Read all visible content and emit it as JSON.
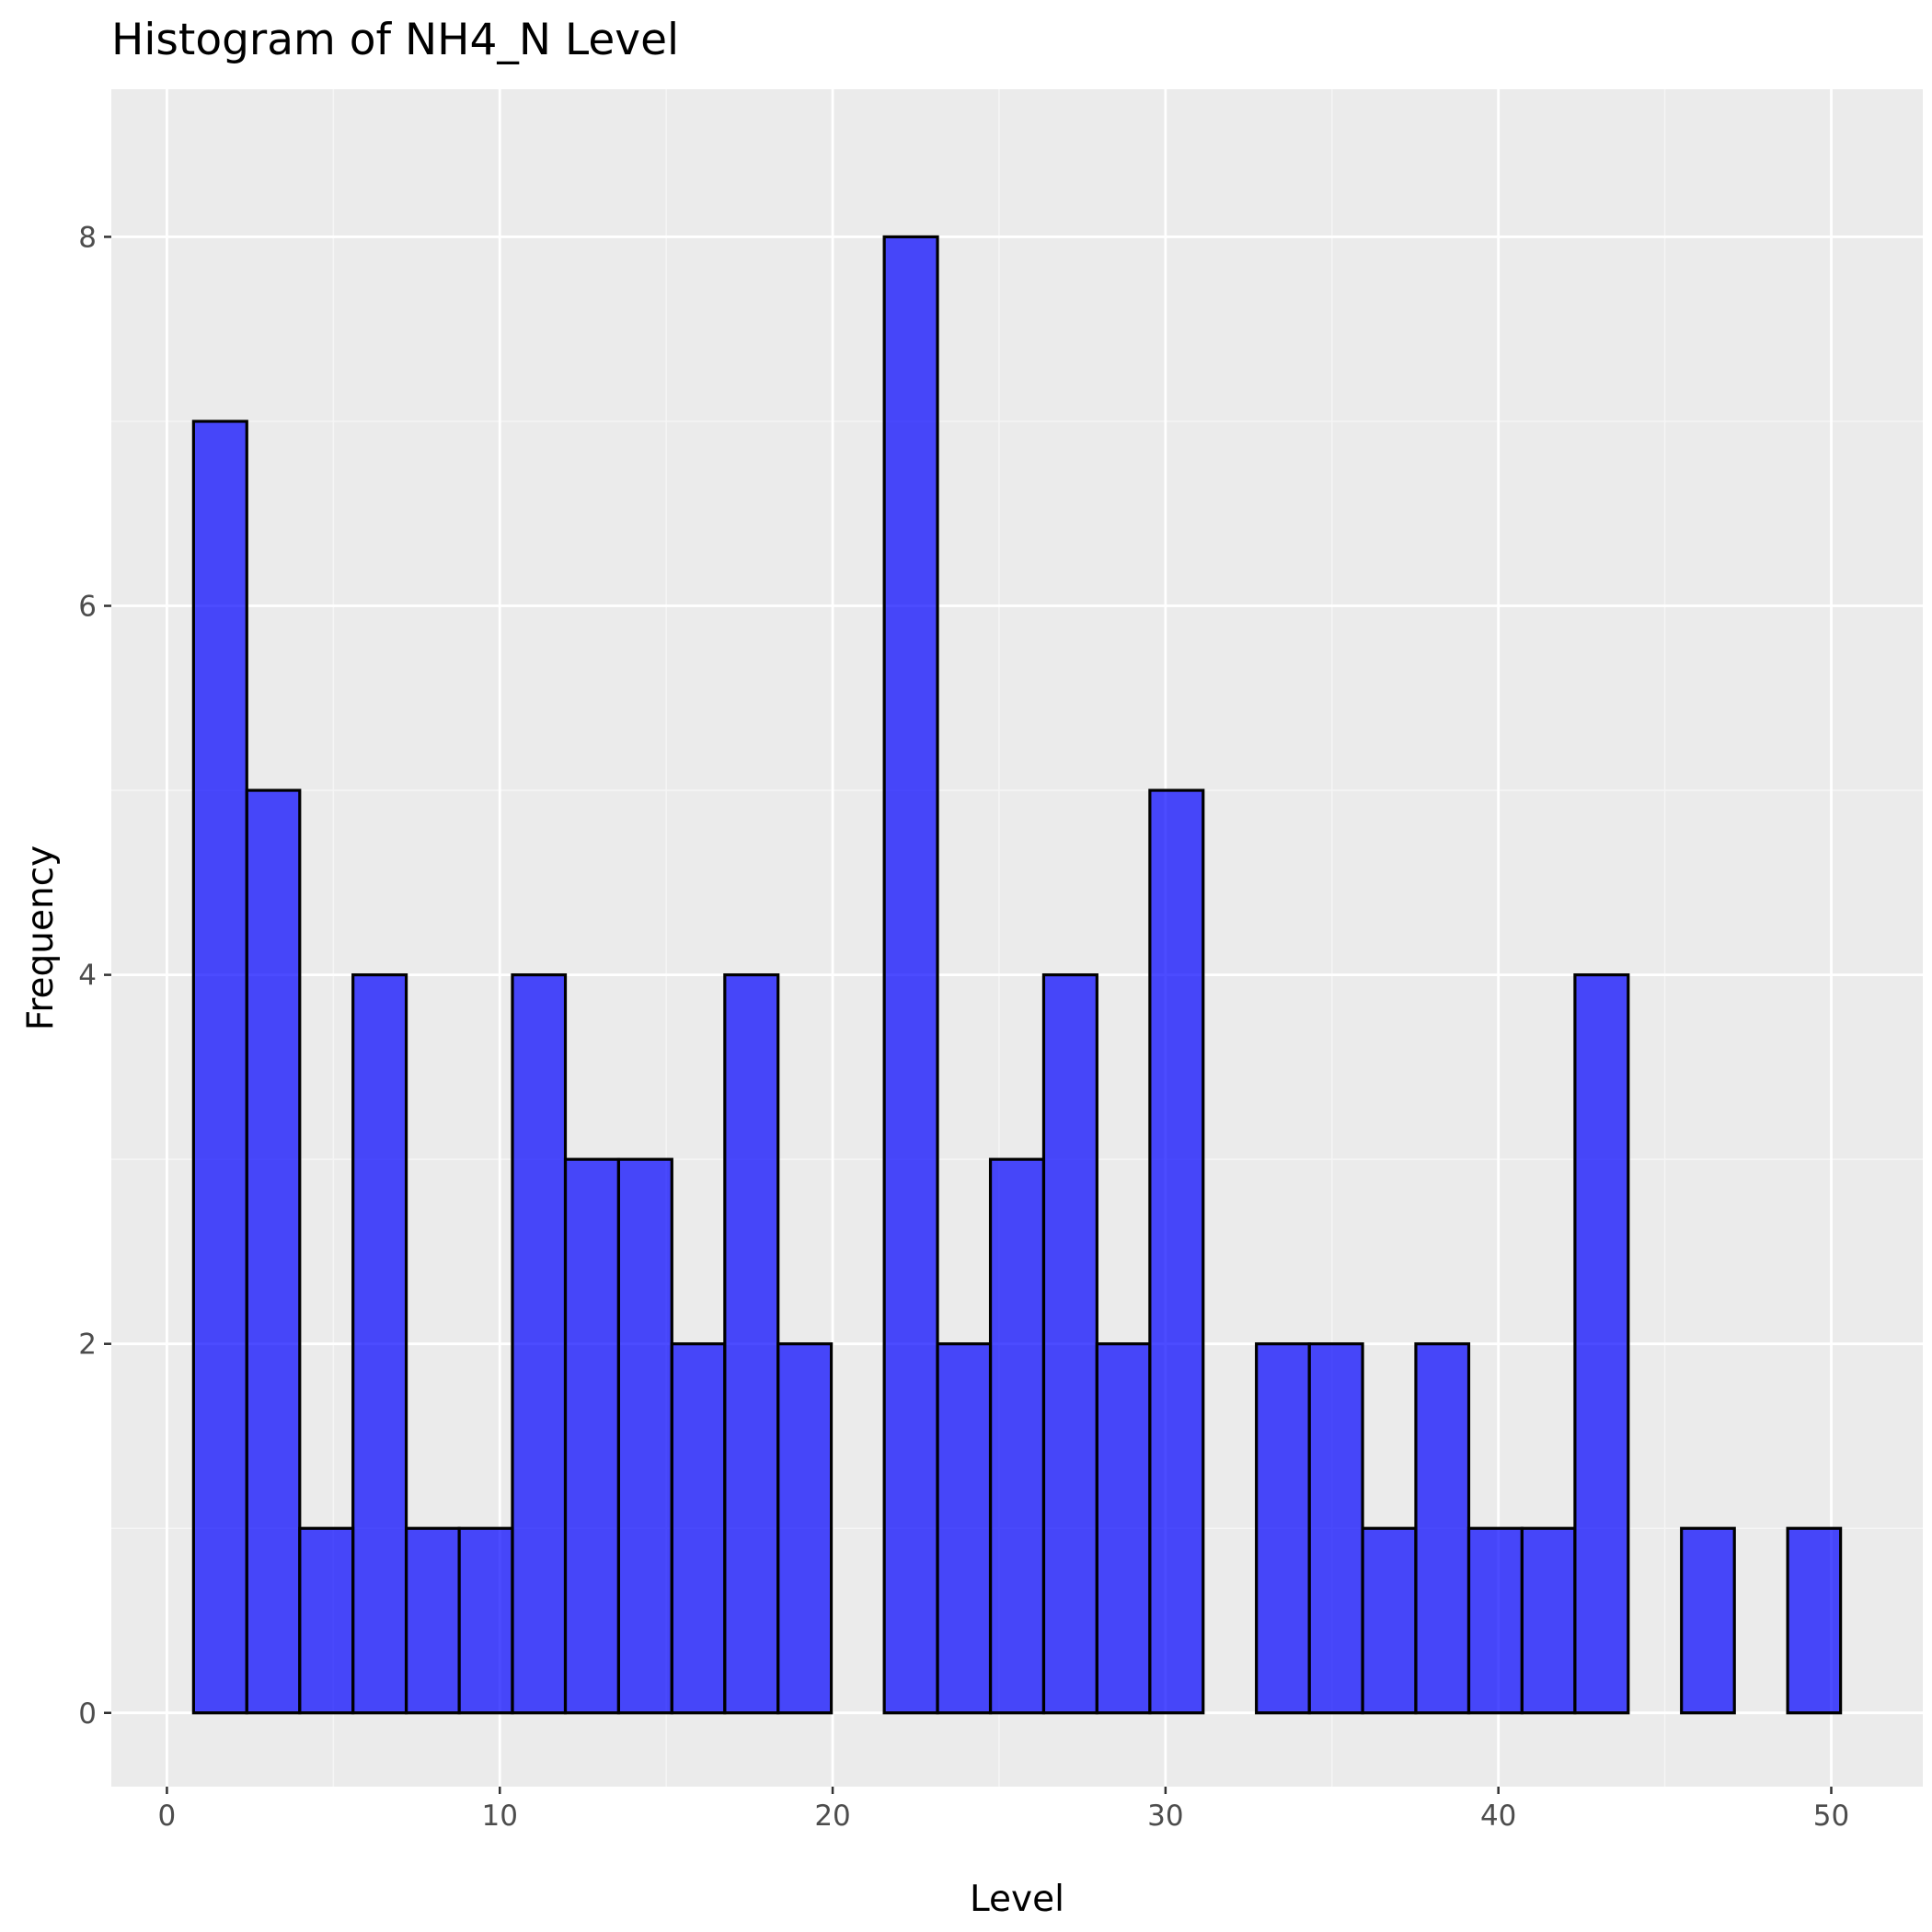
{
  "chart_data": {
    "type": "bar",
    "title": "Histogram of NH4_N Level",
    "xlabel": "Level",
    "ylabel": "Frequency",
    "bin_width": 1.596,
    "bins": [
      {
        "start": 0.8,
        "end": 2.4,
        "count": 7
      },
      {
        "start": 2.4,
        "end": 3.99,
        "count": 5
      },
      {
        "start": 3.99,
        "end": 5.59,
        "count": 1
      },
      {
        "start": 5.59,
        "end": 7.19,
        "count": 4
      },
      {
        "start": 7.19,
        "end": 8.78,
        "count": 1
      },
      {
        "start": 8.78,
        "end": 10.38,
        "count": 1
      },
      {
        "start": 10.38,
        "end": 11.97,
        "count": 4
      },
      {
        "start": 11.97,
        "end": 13.57,
        "count": 3
      },
      {
        "start": 13.57,
        "end": 15.17,
        "count": 3
      },
      {
        "start": 15.17,
        "end": 16.76,
        "count": 2
      },
      {
        "start": 16.76,
        "end": 18.36,
        "count": 4
      },
      {
        "start": 18.36,
        "end": 19.96,
        "count": 2
      },
      {
        "start": 19.96,
        "end": 21.55,
        "count": 0
      },
      {
        "start": 21.55,
        "end": 23.15,
        "count": 8
      },
      {
        "start": 23.15,
        "end": 24.74,
        "count": 2
      },
      {
        "start": 24.74,
        "end": 26.34,
        "count": 3
      },
      {
        "start": 26.34,
        "end": 27.94,
        "count": 4
      },
      {
        "start": 27.94,
        "end": 29.53,
        "count": 2
      },
      {
        "start": 29.53,
        "end": 31.13,
        "count": 5
      },
      {
        "start": 31.13,
        "end": 32.73,
        "count": 0
      },
      {
        "start": 32.73,
        "end": 34.32,
        "count": 2
      },
      {
        "start": 34.32,
        "end": 35.92,
        "count": 2
      },
      {
        "start": 35.92,
        "end": 37.52,
        "count": 1
      },
      {
        "start": 37.52,
        "end": 39.11,
        "count": 2
      },
      {
        "start": 39.11,
        "end": 40.71,
        "count": 1
      },
      {
        "start": 40.71,
        "end": 42.3,
        "count": 1
      },
      {
        "start": 42.3,
        "end": 43.9,
        "count": 4
      },
      {
        "start": 43.9,
        "end": 45.5,
        "count": 0
      },
      {
        "start": 45.5,
        "end": 47.09,
        "count": 1
      },
      {
        "start": 47.09,
        "end": 48.69,
        "count": 0
      },
      {
        "start": 48.69,
        "end": 50.28,
        "count": 1
      }
    ],
    "xlim": [
      -1.67,
      52.75
    ],
    "ylim": [
      -0.4,
      8.8
    ],
    "x_ticks": [
      0,
      10,
      20,
      30,
      40,
      50
    ],
    "x_tick_labels": [
      "0",
      "10",
      "20",
      "30",
      "40",
      "50"
    ],
    "y_ticks": [
      0,
      2,
      4,
      6,
      8
    ],
    "y_tick_labels": [
      "0",
      "2",
      "4",
      "6",
      "8"
    ],
    "grid": true,
    "legend": "none",
    "colors": {
      "bar_fill": "#0000ff",
      "bar_fill_opacity": 0.7,
      "bar_outline": "#000000",
      "panel_background": "#ebebeb",
      "grid_major": "#ffffff",
      "grid_minor": "#f5f5f5",
      "tick_text": "#4d4d4d"
    }
  }
}
